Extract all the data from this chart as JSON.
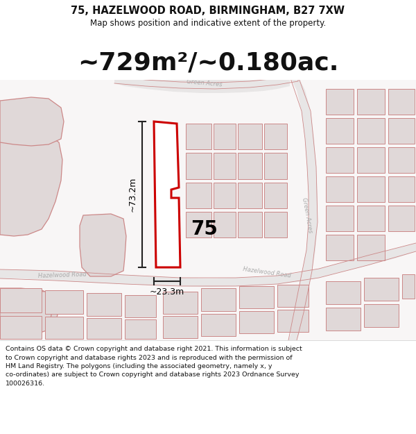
{
  "title_line1": "75, HAZELWOOD ROAD, BIRMINGHAM, B27 7XW",
  "title_line2": "Map shows position and indicative extent of the property.",
  "area_text": "~729m²/~0.180ac.",
  "property_number": "75",
  "dim_vertical": "~73.2m",
  "dim_horizontal": "~23.3m",
  "footer_lines": [
    "Contains OS data © Crown copyright and database right 2021. This information is subject",
    "to Crown copyright and database rights 2023 and is reproduced with the permission of",
    "HM Land Registry. The polygons (including the associated geometry, namely x, y",
    "co-ordinates) are subject to Crown copyright and database rights 2023 Ordnance Survey",
    "100026316."
  ],
  "bg_color": "#f0f0f0",
  "map_bg": "#ffffff",
  "bfill": "#e0d8d8",
  "bstroke": "#cc8888",
  "red_outline": "#cc0000",
  "dim_color": "#222222",
  "road_color": "#bbbbbb",
  "road_label_color": "#aaaaaa",
  "title_color": "#111111",
  "footer_color": "#111111",
  "title_fontsize": 10.5,
  "subtitle_fontsize": 8.5,
  "area_fontsize": 26,
  "prop_num_fontsize": 20,
  "dim_fontsize": 9,
  "road_fontsize": 6,
  "footer_fontsize": 6.8
}
